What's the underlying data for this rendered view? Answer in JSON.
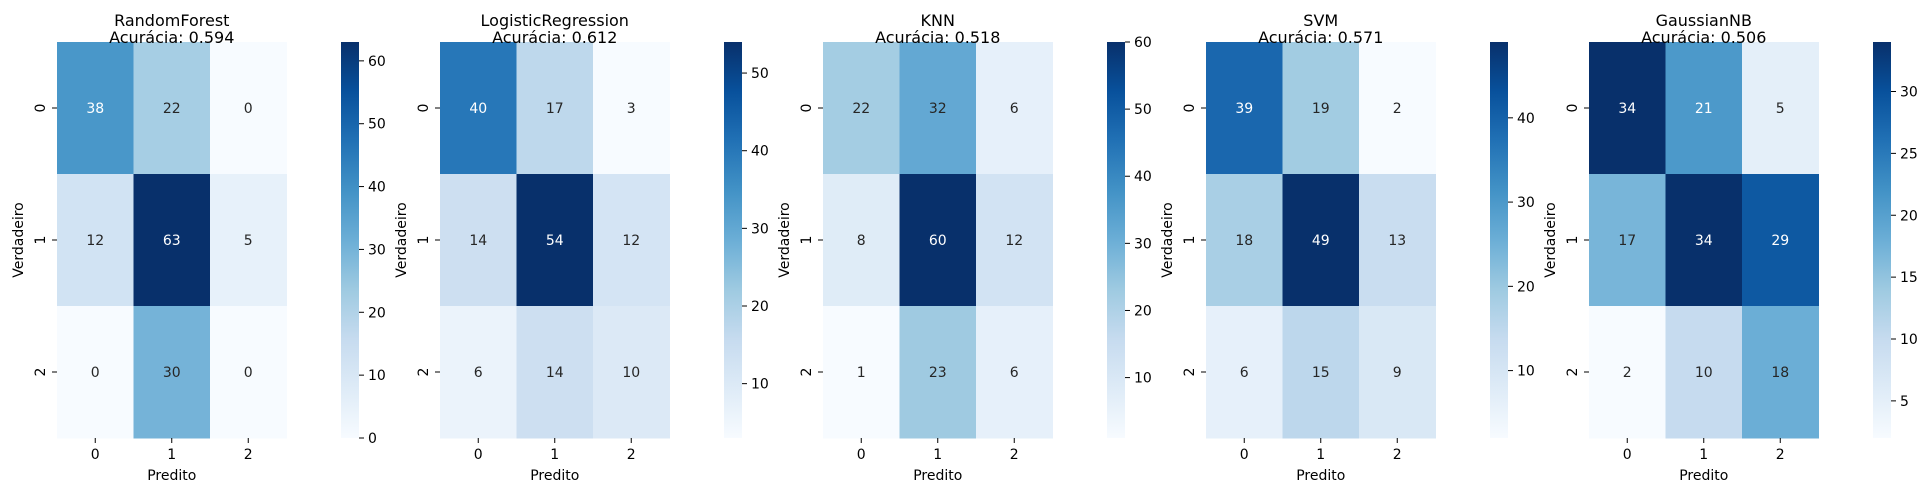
{
  "chart_data": [
    {
      "type": "heatmap",
      "title_lines": [
        "RandomForest",
        "Acurácia: 0.594"
      ],
      "xlabel": "Predito",
      "ylabel": "Verdadeiro",
      "x_categories": [
        "0",
        "1",
        "2"
      ],
      "y_categories": [
        "0",
        "1",
        "2"
      ],
      "values": [
        [
          38,
          22,
          0
        ],
        [
          12,
          63,
          5
        ],
        [
          0,
          30,
          0
        ]
      ],
      "color_range": [
        0,
        63
      ],
      "colorbar_ticks": [
        0,
        10,
        20,
        30,
        40,
        50,
        60
      ]
    },
    {
      "type": "heatmap",
      "title_lines": [
        "LogisticRegression",
        "Acurácia: 0.612"
      ],
      "xlabel": "Predito",
      "ylabel": "Verdadeiro",
      "x_categories": [
        "0",
        "1",
        "2"
      ],
      "y_categories": [
        "0",
        "1",
        "2"
      ],
      "values": [
        [
          40,
          17,
          3
        ],
        [
          14,
          54,
          12
        ],
        [
          6,
          14,
          10
        ]
      ],
      "color_range": [
        3,
        54
      ],
      "colorbar_ticks": [
        10,
        20,
        30,
        40,
        50
      ]
    },
    {
      "type": "heatmap",
      "title_lines": [
        "KNN",
        "Acurácia: 0.518"
      ],
      "xlabel": "Predito",
      "ylabel": "Verdadeiro",
      "x_categories": [
        "0",
        "1",
        "2"
      ],
      "y_categories": [
        "0",
        "1",
        "2"
      ],
      "values": [
        [
          22,
          32,
          6
        ],
        [
          8,
          60,
          12
        ],
        [
          1,
          23,
          6
        ]
      ],
      "color_range": [
        1,
        60
      ],
      "colorbar_ticks": [
        10,
        20,
        30,
        40,
        50,
        60
      ]
    },
    {
      "type": "heatmap",
      "title_lines": [
        "SVM",
        "Acurácia: 0.571"
      ],
      "xlabel": "Predito",
      "ylabel": "Verdadeiro",
      "x_categories": [
        "0",
        "1",
        "2"
      ],
      "y_categories": [
        "0",
        "1",
        "2"
      ],
      "values": [
        [
          39,
          19,
          2
        ],
        [
          18,
          49,
          13
        ],
        [
          6,
          15,
          9
        ]
      ],
      "color_range": [
        2,
        49
      ],
      "colorbar_ticks": [
        10,
        20,
        30,
        40
      ]
    },
    {
      "type": "heatmap",
      "title_lines": [
        "GaussianNB",
        "Acurácia: 0.506"
      ],
      "xlabel": "Predito",
      "ylabel": "Verdadeiro",
      "x_categories": [
        "0",
        "1",
        "2"
      ],
      "y_categories": [
        "0",
        "1",
        "2"
      ],
      "values": [
        [
          34,
          21,
          5
        ],
        [
          17,
          34,
          29
        ],
        [
          2,
          10,
          18
        ]
      ],
      "color_range": [
        2,
        34
      ],
      "colorbar_ticks": [
        5,
        10,
        15,
        20,
        25,
        30
      ]
    }
  ],
  "colormap": "Blues",
  "colormap_stops": [
    "#f7fbff",
    "#deebf7",
    "#c6dbef",
    "#9ecae1",
    "#6baed6",
    "#4292c6",
    "#2171b5",
    "#08519c",
    "#08306b"
  ]
}
